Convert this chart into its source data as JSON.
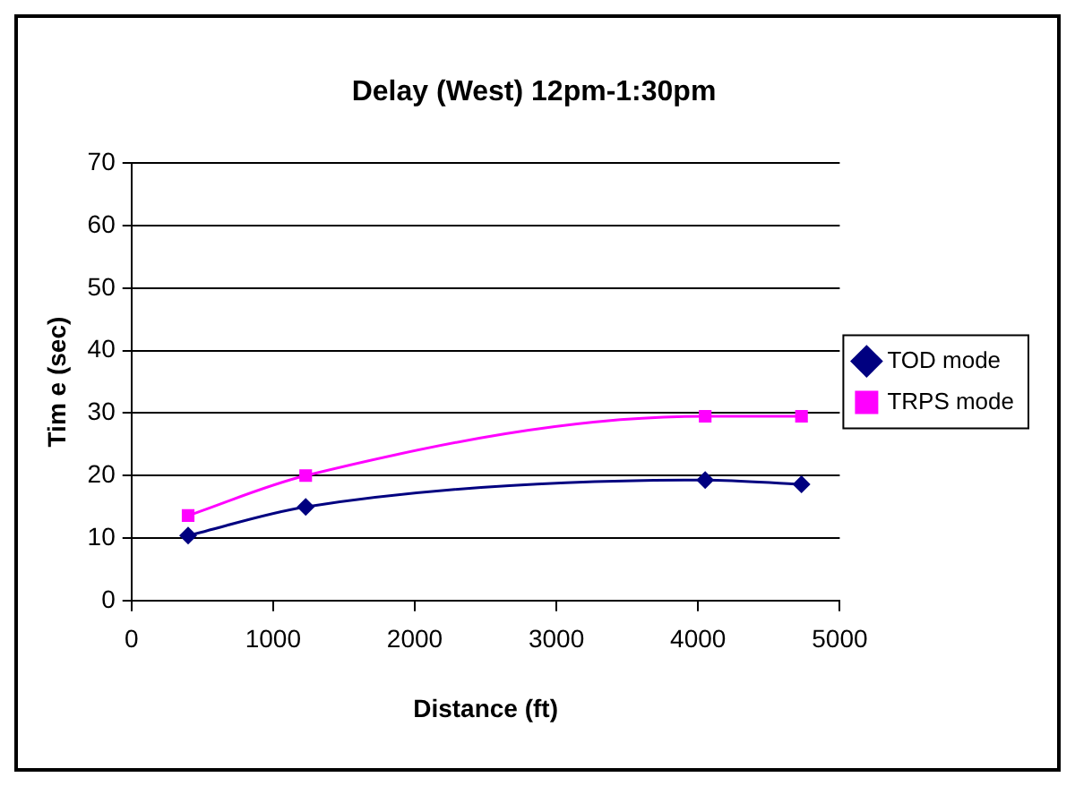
{
  "chart_data": {
    "type": "line",
    "title": "Delay (West) 12pm-1:30pm",
    "xlabel": "Distance (ft)",
    "ylabel": "Tim e (sec)",
    "x": [
      400,
      1230,
      4050,
      4730
    ],
    "series": [
      {
        "name": "TOD mode",
        "color": "#000080",
        "marker": "diamond",
        "values": [
          10.4,
          15,
          19.3,
          18.6
        ]
      },
      {
        "name": "TRPS mode",
        "color": "#ff00ff",
        "marker": "square",
        "values": [
          13.6,
          20,
          29.5,
          29.5
        ]
      }
    ],
    "xlim": [
      0,
      5000
    ],
    "xticks": [
      0,
      1000,
      2000,
      3000,
      4000,
      5000
    ],
    "ylim": [
      0,
      70
    ],
    "yticks": [
      0,
      10,
      20,
      30,
      40,
      50,
      60,
      70
    ],
    "grid": "y",
    "legend": "right",
    "line_style": "solid"
  }
}
